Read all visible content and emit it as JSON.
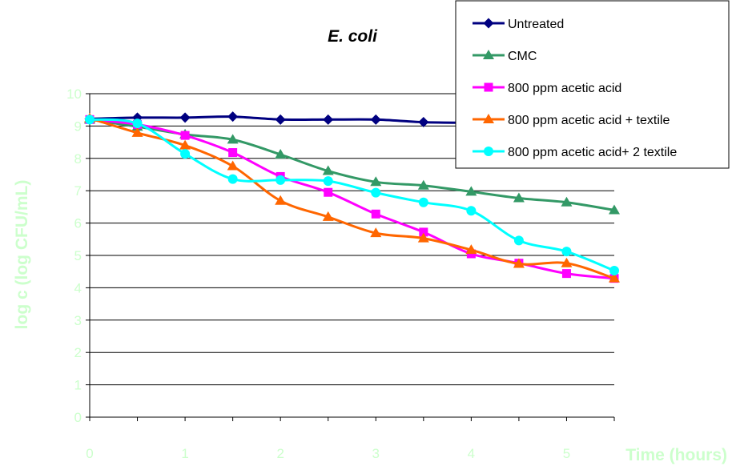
{
  "chart_data": {
    "type": "line",
    "title": "E. coli",
    "xlabel": "Time (hours)",
    "ylabel": "log c (log CFU/mL)",
    "xlim": [
      0,
      5.5
    ],
    "ylim": [
      0,
      10
    ],
    "x_ticks": [
      0,
      1,
      2,
      3,
      4,
      5
    ],
    "y_ticks": [
      0,
      1,
      2,
      3,
      4,
      5,
      6,
      7,
      8,
      9,
      10
    ],
    "grid": "horizontal",
    "legend_position": "top-right",
    "axis_label_color": "#ccffcc",
    "x": [
      0,
      0.5,
      1,
      1.5,
      2,
      2.5,
      3,
      3.5,
      4,
      4.5,
      5,
      5.5
    ],
    "series": [
      {
        "name": "Untreated",
        "color": "#000080",
        "marker": "diamond",
        "values": [
          9.22,
          9.26,
          9.26,
          9.29,
          9.2,
          9.2,
          9.2,
          9.12,
          9.1,
          9.1,
          9.1,
          9.1
        ]
      },
      {
        "name": "CMC",
        "color": "#339966",
        "marker": "triangle",
        "values": [
          9.2,
          8.98,
          8.74,
          8.58,
          8.12,
          7.61,
          7.27,
          7.16,
          6.97,
          6.77,
          6.64,
          6.4
        ]
      },
      {
        "name": "800 ppm acetic acid",
        "color": "#ff00ff",
        "marker": "square",
        "values": [
          9.2,
          9.05,
          8.71,
          8.18,
          7.44,
          6.95,
          6.28,
          5.72,
          5.05,
          4.76,
          4.44,
          4.29
        ]
      },
      {
        "name": "800 ppm acetic acid + textile",
        "color": "#ff6600",
        "marker": "triangle",
        "values": [
          9.24,
          8.79,
          8.4,
          7.76,
          6.69,
          6.19,
          5.69,
          5.53,
          5.17,
          4.74,
          4.76,
          4.29
        ]
      },
      {
        "name": "800 ppm acetic acid+ 2 textile",
        "color": "#00ffff",
        "marker": "circle",
        "values": [
          9.2,
          9.08,
          8.14,
          7.36,
          7.33,
          7.3,
          6.94,
          6.64,
          6.38,
          5.46,
          5.12,
          4.53
        ]
      }
    ]
  }
}
